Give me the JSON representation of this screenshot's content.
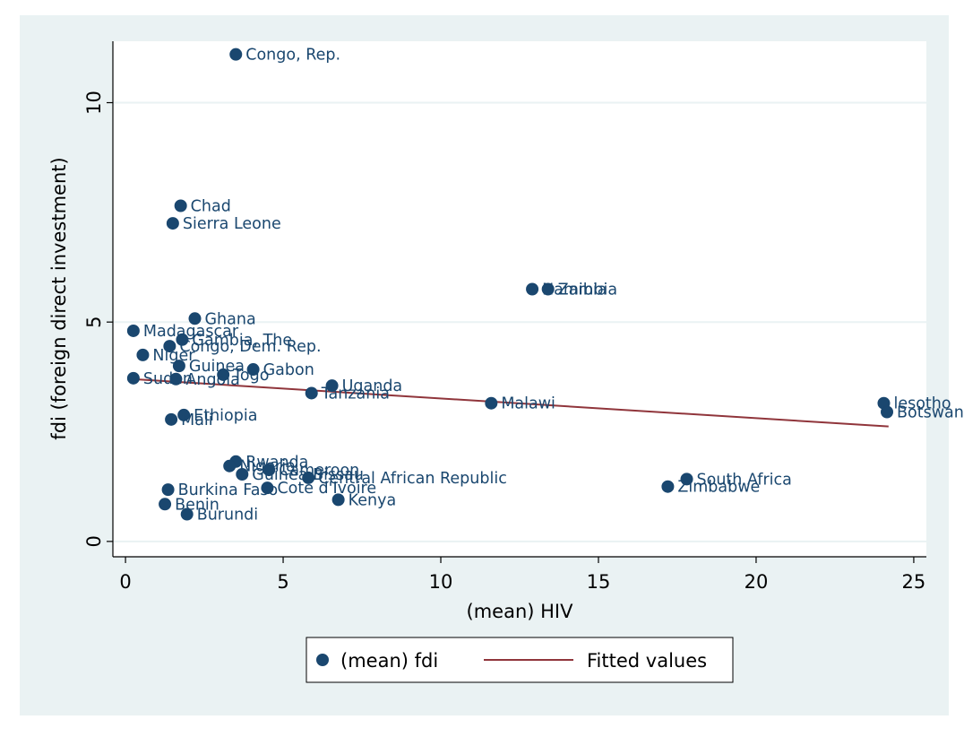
{
  "chart_data": {
    "type": "scatter",
    "title": "",
    "xlabel": "(mean) HIV",
    "ylabel": "fdi (foreign direct investment)",
    "xlim": [
      -0.4,
      25.4
    ],
    "ylim": [
      -0.35,
      11.4
    ],
    "xticks": [
      0,
      5,
      10,
      15,
      20,
      25
    ],
    "yticks": [
      0,
      5,
      10
    ],
    "grid": "horizontal",
    "series": [
      {
        "name": "(mean) fdi",
        "kind": "scatter",
        "color": "#1a476f",
        "points": [
          {
            "label": "Congo, Rep.",
            "x": 3.5,
            "y": 11.1
          },
          {
            "label": "Chad",
            "x": 1.75,
            "y": 7.65
          },
          {
            "label": "Sierra Leone",
            "x": 1.5,
            "y": 7.25
          },
          {
            "label": "Namibia",
            "x": 12.9,
            "y": 5.75
          },
          {
            "label": "Zambia",
            "x": 13.4,
            "y": 5.75
          },
          {
            "label": "Ghana",
            "x": 2.2,
            "y": 5.08
          },
          {
            "label": "Madagascar",
            "x": 0.25,
            "y": 4.8
          },
          {
            "label": "Gambia, The",
            "x": 1.8,
            "y": 4.6
          },
          {
            "label": "Congo, Dem. Rep.",
            "x": 1.4,
            "y": 4.45
          },
          {
            "label": "Niger",
            "x": 0.55,
            "y": 4.25
          },
          {
            "label": "Guinea",
            "x": 1.7,
            "y": 4.0
          },
          {
            "label": "Gabon",
            "x": 4.05,
            "y": 3.92
          },
          {
            "label": "Togo",
            "x": 3.1,
            "y": 3.8
          },
          {
            "label": "Sudan",
            "x": 0.25,
            "y": 3.72
          },
          {
            "label": "Angola",
            "x": 1.6,
            "y": 3.7
          },
          {
            "label": "Uganda",
            "x": 6.55,
            "y": 3.55
          },
          {
            "label": "Tanzania",
            "x": 5.9,
            "y": 3.38
          },
          {
            "label": "Malawi",
            "x": 11.6,
            "y": 3.15
          },
          {
            "label": "lesotho",
            "x": 24.05,
            "y": 3.15
          },
          {
            "label": "Botswana",
            "x": 24.15,
            "y": 2.95
          },
          {
            "label": "Ethiopia",
            "x": 1.85,
            "y": 2.88
          },
          {
            "label": "Mali",
            "x": 1.45,
            "y": 2.78
          },
          {
            "label": "Rwanda",
            "x": 3.5,
            "y": 1.82
          },
          {
            "label": "Nigeria",
            "x": 3.3,
            "y": 1.72
          },
          {
            "label": "Cameroon",
            "x": 4.55,
            "y": 1.63
          },
          {
            "label": "Guinea-Bissau",
            "x": 3.7,
            "y": 1.53
          },
          {
            "label": "Central African Republic",
            "x": 5.8,
            "y": 1.45
          },
          {
            "label": "South Africa",
            "x": 17.8,
            "y": 1.42
          },
          {
            "label": "Zimbabwe",
            "x": 17.2,
            "y": 1.25
          },
          {
            "label": "Cote d'Ivoire",
            "x": 4.5,
            "y": 1.22
          },
          {
            "label": "Burkina Faso",
            "x": 1.35,
            "y": 1.18
          },
          {
            "label": "Kenya",
            "x": 6.75,
            "y": 0.95
          },
          {
            "label": "Benin",
            "x": 1.25,
            "y": 0.85
          },
          {
            "label": "Burundi",
            "x": 1.95,
            "y": 0.62
          }
        ]
      },
      {
        "name": "Fitted values",
        "kind": "line",
        "color": "#90353b",
        "x": [
          0.2,
          24.2
        ],
        "values": [
          3.7,
          2.62
        ]
      }
    ],
    "legend": {
      "position": "bottom",
      "entries": [
        "(mean) fdi",
        "Fitted values"
      ]
    }
  }
}
